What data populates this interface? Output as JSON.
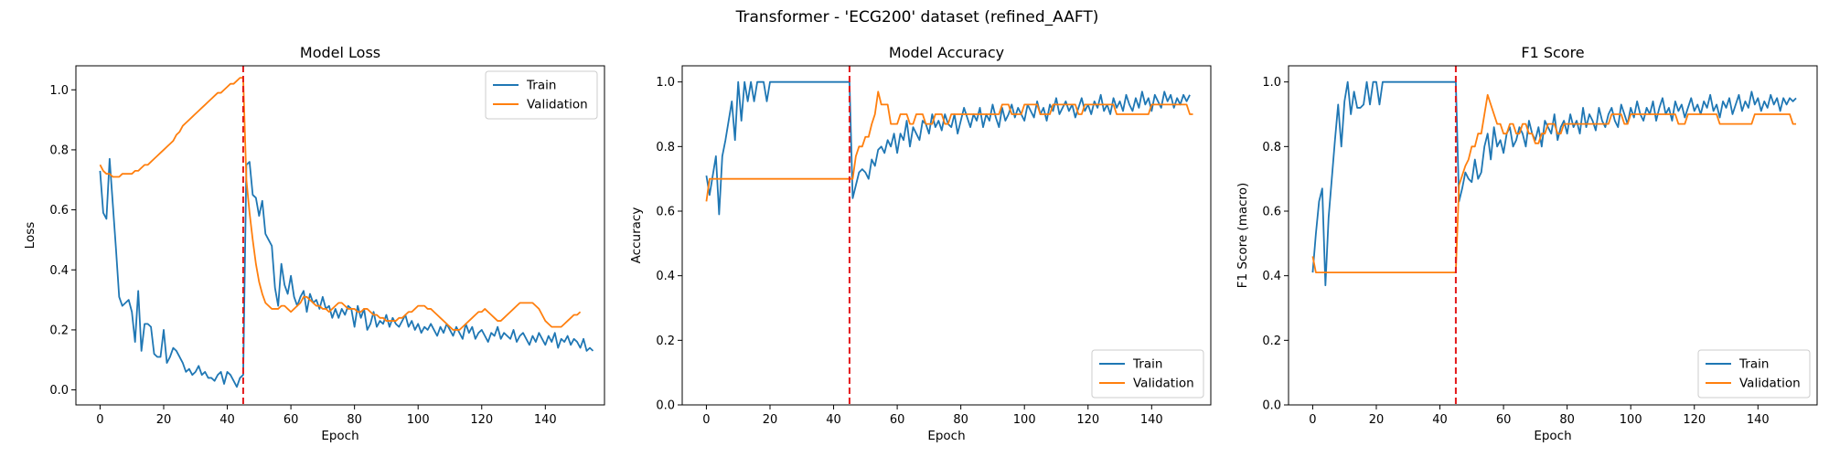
{
  "suptitle": "Transformer - 'ECG200' dataset (refined_AAFT)",
  "colors": {
    "train": "#1f77b4",
    "validation": "#ff7f0e",
    "marker": "#e31a1c",
    "axis": "#000000"
  },
  "chart_data": [
    {
      "type": "line",
      "title": "Model Loss",
      "xlabel": "Epoch",
      "ylabel": "Loss",
      "xlim": [
        -7.6,
        158.6
      ],
      "ylim": [
        -0.05,
        1.08
      ],
      "xticks": [
        0,
        20,
        40,
        60,
        80,
        100,
        120,
        140
      ],
      "yticks": [
        0.0,
        0.2,
        0.4,
        0.6,
        0.8,
        1.0
      ],
      "ytick_decimals": 1,
      "vline_x": 45,
      "legend_position": "upper right",
      "series": [
        {
          "name": "Train",
          "color": "#1f77b4",
          "values": [
            0.73,
            0.59,
            0.57,
            0.77,
            0.62,
            0.47,
            0.31,
            0.28,
            0.29,
            0.3,
            0.26,
            0.16,
            0.33,
            0.13,
            0.22,
            0.22,
            0.21,
            0.12,
            0.11,
            0.11,
            0.2,
            0.09,
            0.11,
            0.14,
            0.13,
            0.11,
            0.09,
            0.06,
            0.07,
            0.05,
            0.06,
            0.08,
            0.05,
            0.06,
            0.04,
            0.04,
            0.03,
            0.05,
            0.06,
            0.02,
            0.06,
            0.05,
            0.03,
            0.01,
            0.04,
            0.05,
            0.75,
            0.76,
            0.65,
            0.64,
            0.58,
            0.63,
            0.52,
            0.5,
            0.48,
            0.34,
            0.28,
            0.42,
            0.35,
            0.32,
            0.38,
            0.31,
            0.28,
            0.31,
            0.33,
            0.26,
            0.32,
            0.29,
            0.3,
            0.27,
            0.31,
            0.27,
            0.28,
            0.24,
            0.27,
            0.24,
            0.27,
            0.25,
            0.28,
            0.27,
            0.21,
            0.28,
            0.24,
            0.27,
            0.2,
            0.22,
            0.26,
            0.21,
            0.23,
            0.22,
            0.25,
            0.21,
            0.24,
            0.22,
            0.21,
            0.23,
            0.25,
            0.21,
            0.23,
            0.2,
            0.22,
            0.19,
            0.21,
            0.2,
            0.22,
            0.2,
            0.18,
            0.21,
            0.19,
            0.22,
            0.2,
            0.18,
            0.21,
            0.19,
            0.17,
            0.22,
            0.19,
            0.21,
            0.17,
            0.19,
            0.2,
            0.18,
            0.16,
            0.19,
            0.18,
            0.21,
            0.17,
            0.19,
            0.18,
            0.17,
            0.2,
            0.16,
            0.18,
            0.19,
            0.17,
            0.15,
            0.18,
            0.16,
            0.19,
            0.17,
            0.15,
            0.18,
            0.16,
            0.19,
            0.14,
            0.17,
            0.16,
            0.18,
            0.15,
            0.17,
            0.16,
            0.14,
            0.17,
            0.13,
            0.14,
            0.13
          ]
        },
        {
          "name": "Validation",
          "color": "#ff7f0e",
          "values": [
            0.75,
            0.73,
            0.72,
            0.72,
            0.71,
            0.71,
            0.71,
            0.72,
            0.72,
            0.72,
            0.72,
            0.73,
            0.73,
            0.74,
            0.75,
            0.75,
            0.76,
            0.77,
            0.78,
            0.79,
            0.8,
            0.81,
            0.82,
            0.83,
            0.85,
            0.86,
            0.88,
            0.89,
            0.9,
            0.91,
            0.92,
            0.93,
            0.94,
            0.95,
            0.96,
            0.97,
            0.98,
            0.99,
            0.99,
            1.0,
            1.01,
            1.02,
            1.02,
            1.03,
            1.04,
            1.04,
            0.7,
            0.59,
            0.5,
            0.42,
            0.36,
            0.32,
            0.29,
            0.28,
            0.27,
            0.27,
            0.27,
            0.28,
            0.28,
            0.27,
            0.26,
            0.27,
            0.28,
            0.29,
            0.31,
            0.31,
            0.3,
            0.29,
            0.28,
            0.28,
            0.27,
            0.27,
            0.26,
            0.27,
            0.28,
            0.29,
            0.29,
            0.28,
            0.27,
            0.27,
            0.27,
            0.26,
            0.26,
            0.27,
            0.27,
            0.26,
            0.25,
            0.25,
            0.24,
            0.24,
            0.23,
            0.23,
            0.23,
            0.23,
            0.24,
            0.24,
            0.25,
            0.26,
            0.26,
            0.27,
            0.28,
            0.28,
            0.28,
            0.27,
            0.27,
            0.26,
            0.25,
            0.24,
            0.23,
            0.22,
            0.21,
            0.2,
            0.2,
            0.2,
            0.21,
            0.22,
            0.23,
            0.24,
            0.25,
            0.26,
            0.26,
            0.27,
            0.26,
            0.25,
            0.24,
            0.23,
            0.23,
            0.24,
            0.25,
            0.26,
            0.27,
            0.28,
            0.29,
            0.29,
            0.29,
            0.29,
            0.29,
            0.28,
            0.27,
            0.25,
            0.23,
            0.22,
            0.21,
            0.21,
            0.21,
            0.21,
            0.22,
            0.23,
            0.24,
            0.25,
            0.25,
            0.26
          ]
        }
      ]
    },
    {
      "type": "line",
      "title": "Model Accuracy",
      "xlabel": "Epoch",
      "ylabel": "Accuracy",
      "xlim": [
        -7.6,
        158.6
      ],
      "ylim": [
        0.0,
        1.05
      ],
      "xticks": [
        0,
        20,
        40,
        60,
        80,
        100,
        120,
        140
      ],
      "yticks": [
        0.0,
        0.2,
        0.4,
        0.6,
        0.8,
        1.0
      ],
      "ytick_decimals": 1,
      "vline_x": 45,
      "legend_position": "lower right",
      "series": [
        {
          "name": "Train",
          "color": "#1f77b4",
          "values": [
            0.71,
            0.65,
            0.71,
            0.77,
            0.59,
            0.77,
            0.82,
            0.88,
            0.94,
            0.82,
            1.0,
            0.88,
            1.0,
            0.94,
            1.0,
            0.94,
            1.0,
            1.0,
            1.0,
            0.94,
            1.0,
            1.0,
            1.0,
            1.0,
            1.0,
            1.0,
            1.0,
            1.0,
            1.0,
            1.0,
            1.0,
            1.0,
            1.0,
            1.0,
            1.0,
            1.0,
            1.0,
            1.0,
            1.0,
            1.0,
            1.0,
            1.0,
            1.0,
            1.0,
            1.0,
            1.0,
            0.64,
            0.68,
            0.72,
            0.73,
            0.72,
            0.7,
            0.76,
            0.74,
            0.79,
            0.8,
            0.78,
            0.82,
            0.8,
            0.84,
            0.78,
            0.84,
            0.82,
            0.88,
            0.8,
            0.86,
            0.84,
            0.82,
            0.88,
            0.87,
            0.84,
            0.9,
            0.86,
            0.88,
            0.85,
            0.9,
            0.87,
            0.86,
            0.9,
            0.84,
            0.88,
            0.92,
            0.89,
            0.86,
            0.9,
            0.88,
            0.92,
            0.86,
            0.9,
            0.88,
            0.93,
            0.89,
            0.86,
            0.92,
            0.88,
            0.9,
            0.93,
            0.89,
            0.92,
            0.9,
            0.88,
            0.93,
            0.91,
            0.89,
            0.94,
            0.9,
            0.92,
            0.88,
            0.93,
            0.91,
            0.95,
            0.9,
            0.92,
            0.94,
            0.91,
            0.93,
            0.89,
            0.92,
            0.95,
            0.91,
            0.93,
            0.9,
            0.94,
            0.92,
            0.96,
            0.91,
            0.93,
            0.9,
            0.95,
            0.92,
            0.94,
            0.91,
            0.96,
            0.93,
            0.91,
            0.95,
            0.92,
            0.97,
            0.93,
            0.95,
            0.91,
            0.96,
            0.94,
            0.92,
            0.97,
            0.94,
            0.96,
            0.92,
            0.95,
            0.93,
            0.96,
            0.94,
            0.96
          ]
        },
        {
          "name": "Validation",
          "color": "#ff7f0e",
          "values": [
            0.63,
            0.7,
            0.7,
            0.7,
            0.7,
            0.7,
            0.7,
            0.7,
            0.7,
            0.7,
            0.7,
            0.7,
            0.7,
            0.7,
            0.7,
            0.7,
            0.7,
            0.7,
            0.7,
            0.7,
            0.7,
            0.7,
            0.7,
            0.7,
            0.7,
            0.7,
            0.7,
            0.7,
            0.7,
            0.7,
            0.7,
            0.7,
            0.7,
            0.7,
            0.7,
            0.7,
            0.7,
            0.7,
            0.7,
            0.7,
            0.7,
            0.7,
            0.7,
            0.7,
            0.7,
            0.7,
            0.7,
            0.77,
            0.8,
            0.8,
            0.83,
            0.83,
            0.87,
            0.9,
            0.97,
            0.93,
            0.93,
            0.93,
            0.87,
            0.87,
            0.87,
            0.9,
            0.9,
            0.9,
            0.87,
            0.87,
            0.9,
            0.9,
            0.9,
            0.87,
            0.87,
            0.87,
            0.9,
            0.9,
            0.9,
            0.87,
            0.87,
            0.9,
            0.9,
            0.9,
            0.9,
            0.9,
            0.9,
            0.9,
            0.9,
            0.9,
            0.9,
            0.9,
            0.9,
            0.9,
            0.9,
            0.9,
            0.9,
            0.93,
            0.93,
            0.93,
            0.9,
            0.9,
            0.9,
            0.9,
            0.93,
            0.93,
            0.93,
            0.93,
            0.93,
            0.9,
            0.9,
            0.9,
            0.9,
            0.93,
            0.93,
            0.93,
            0.93,
            0.93,
            0.93,
            0.93,
            0.93,
            0.9,
            0.9,
            0.93,
            0.93,
            0.93,
            0.93,
            0.93,
            0.93,
            0.93,
            0.93,
            0.93,
            0.93,
            0.9,
            0.9,
            0.9,
            0.9,
            0.9,
            0.9,
            0.9,
            0.9,
            0.9,
            0.9,
            0.9,
            0.93,
            0.93,
            0.93,
            0.93,
            0.93,
            0.93,
            0.93,
            0.93,
            0.93,
            0.93,
            0.93,
            0.93,
            0.9,
            0.9
          ]
        }
      ]
    },
    {
      "type": "line",
      "title": "F1 Score",
      "xlabel": "Epoch",
      "ylabel": "F1 Score (macro)",
      "xlim": [
        -7.6,
        158.6
      ],
      "ylim": [
        0.0,
        1.05
      ],
      "xticks": [
        0,
        20,
        40,
        60,
        80,
        100,
        120,
        140
      ],
      "yticks": [
        0.0,
        0.2,
        0.4,
        0.6,
        0.8,
        1.0
      ],
      "ytick_decimals": 1,
      "vline_x": 45,
      "legend_position": "lower right",
      "series": [
        {
          "name": "Train",
          "color": "#1f77b4",
          "values": [
            0.41,
            0.53,
            0.63,
            0.67,
            0.37,
            0.58,
            0.7,
            0.82,
            0.93,
            0.8,
            0.94,
            1.0,
            0.9,
            0.97,
            0.92,
            0.92,
            0.93,
            1.0,
            0.93,
            1.0,
            1.0,
            0.93,
            1.0,
            1.0,
            1.0,
            1.0,
            1.0,
            1.0,
            1.0,
            1.0,
            1.0,
            1.0,
            1.0,
            1.0,
            1.0,
            1.0,
            1.0,
            1.0,
            1.0,
            1.0,
            1.0,
            1.0,
            1.0,
            1.0,
            1.0,
            1.0,
            0.63,
            0.67,
            0.72,
            0.7,
            0.69,
            0.76,
            0.7,
            0.72,
            0.8,
            0.84,
            0.76,
            0.86,
            0.8,
            0.82,
            0.78,
            0.84,
            0.86,
            0.8,
            0.82,
            0.86,
            0.84,
            0.8,
            0.88,
            0.84,
            0.82,
            0.86,
            0.8,
            0.88,
            0.86,
            0.84,
            0.9,
            0.82,
            0.86,
            0.88,
            0.84,
            0.9,
            0.86,
            0.88,
            0.84,
            0.92,
            0.86,
            0.9,
            0.88,
            0.85,
            0.92,
            0.88,
            0.86,
            0.9,
            0.92,
            0.88,
            0.86,
            0.93,
            0.9,
            0.87,
            0.92,
            0.89,
            0.94,
            0.9,
            0.88,
            0.92,
            0.9,
            0.94,
            0.88,
            0.92,
            0.95,
            0.9,
            0.92,
            0.88,
            0.94,
            0.91,
            0.93,
            0.89,
            0.92,
            0.95,
            0.91,
            0.93,
            0.9,
            0.94,
            0.92,
            0.96,
            0.91,
            0.93,
            0.89,
            0.94,
            0.92,
            0.95,
            0.9,
            0.93,
            0.96,
            0.91,
            0.94,
            0.92,
            0.97,
            0.93,
            0.95,
            0.91,
            0.94,
            0.92,
            0.96,
            0.93,
            0.95,
            0.91,
            0.95,
            0.93,
            0.95,
            0.94,
            0.95
          ]
        },
        {
          "name": "Validation",
          "color": "#ff7f0e",
          "values": [
            0.46,
            0.41,
            0.41,
            0.41,
            0.41,
            0.41,
            0.41,
            0.41,
            0.41,
            0.41,
            0.41,
            0.41,
            0.41,
            0.41,
            0.41,
            0.41,
            0.41,
            0.41,
            0.41,
            0.41,
            0.41,
            0.41,
            0.41,
            0.41,
            0.41,
            0.41,
            0.41,
            0.41,
            0.41,
            0.41,
            0.41,
            0.41,
            0.41,
            0.41,
            0.41,
            0.41,
            0.41,
            0.41,
            0.41,
            0.41,
            0.41,
            0.41,
            0.41,
            0.41,
            0.41,
            0.41,
            0.68,
            0.71,
            0.74,
            0.76,
            0.8,
            0.8,
            0.84,
            0.84,
            0.9,
            0.96,
            0.93,
            0.9,
            0.87,
            0.87,
            0.84,
            0.84,
            0.87,
            0.87,
            0.84,
            0.84,
            0.87,
            0.87,
            0.84,
            0.84,
            0.81,
            0.81,
            0.84,
            0.84,
            0.87,
            0.87,
            0.87,
            0.84,
            0.84,
            0.87,
            0.87,
            0.87,
            0.87,
            0.87,
            0.87,
            0.87,
            0.87,
            0.87,
            0.87,
            0.87,
            0.87,
            0.87,
            0.87,
            0.87,
            0.9,
            0.9,
            0.9,
            0.9,
            0.87,
            0.87,
            0.9,
            0.9,
            0.9,
            0.9,
            0.9,
            0.9,
            0.9,
            0.9,
            0.9,
            0.9,
            0.9,
            0.9,
            0.9,
            0.9,
            0.9,
            0.87,
            0.87,
            0.87,
            0.9,
            0.9,
            0.9,
            0.9,
            0.9,
            0.9,
            0.9,
            0.9,
            0.9,
            0.9,
            0.87,
            0.87,
            0.87,
            0.87,
            0.87,
            0.87,
            0.87,
            0.87,
            0.87,
            0.87,
            0.87,
            0.9,
            0.9,
            0.9,
            0.9,
            0.9,
            0.9,
            0.9,
            0.9,
            0.9,
            0.9,
            0.9,
            0.9,
            0.87,
            0.87
          ]
        }
      ]
    }
  ]
}
